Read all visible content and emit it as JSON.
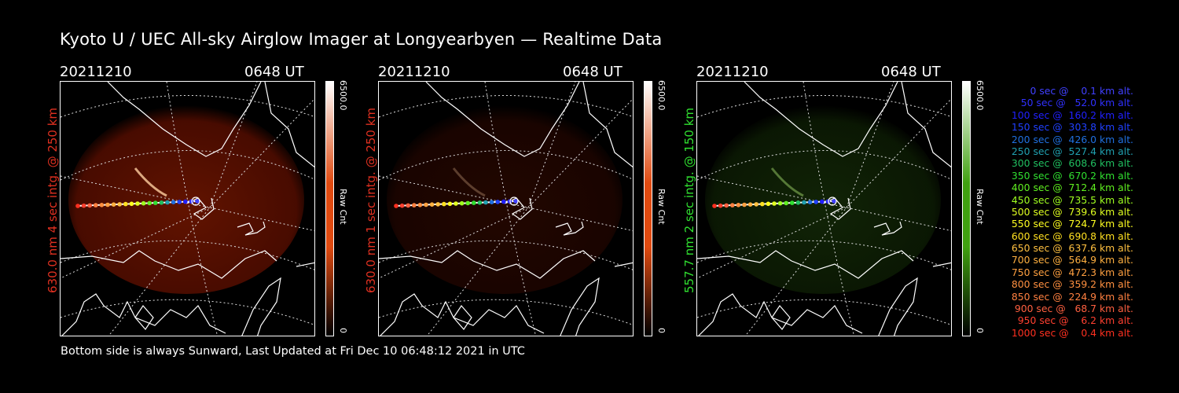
{
  "title": "Kyoto U / UEC All-sky Airglow Imager at Longyearbyen — Realtime Data",
  "footer": "Bottom side is always Sunward, Last Updated at Fri Dec 10 06:48:12 2021 in UTC",
  "panels": [
    {
      "date": "20211210",
      "time": "0648 UT",
      "side_label": "630.0 nm 4 sec intg. @ 250 km",
      "label_color": "#e03020",
      "colorbar_max": "6500.0",
      "colorbar_min": "0",
      "colorbar_unit": "Raw Cnt",
      "colorbar_color": "#e04a10",
      "glow_color": "red",
      "brightness": 0.8
    },
    {
      "date": "20211210",
      "time": "0648 UT",
      "side_label": "630.0 nm 1 sec intg. @ 250 km",
      "label_color": "#e03020",
      "colorbar_max": "6500.0",
      "colorbar_min": "0",
      "colorbar_unit": "Raw Cnt",
      "colorbar_color": "#e04a10",
      "glow_color": "red",
      "brightness": 0.28
    },
    {
      "date": "20211210",
      "time": "0648 UT",
      "side_label": "557.7 nm 2 sec intg. @ 150 km",
      "label_color": "#30e030",
      "colorbar_max": "6500.0",
      "colorbar_min": "0",
      "colorbar_unit": "Raw Cnt",
      "colorbar_color": "#40a010",
      "glow_color": "green",
      "brightness": 0.4
    }
  ],
  "legend": [
    {
      "text": "0 sec @    0.1 km alt.",
      "color": "#4040ff"
    },
    {
      "text": "50 sec @   52.0 km alt.",
      "color": "#3030ff"
    },
    {
      "text": "100 sec @  160.2 km alt.",
      "color": "#2020ff"
    },
    {
      "text": "150 sec @  303.8 km alt.",
      "color": "#2040ff"
    },
    {
      "text": "200 sec @  426.0 km alt.",
      "color": "#2070e0"
    },
    {
      "text": "250 sec @  527.4 km alt.",
      "color": "#20a0b0"
    },
    {
      "text": "300 sec @  608.6 km alt.",
      "color": "#20c060"
    },
    {
      "text": "350 sec @  670.2 km alt.",
      "color": "#30e030"
    },
    {
      "text": "400 sec @  712.4 km alt.",
      "color": "#60f020"
    },
    {
      "text": "450 sec @  735.5 km alt.",
      "color": "#a0ff20"
    },
    {
      "text": "500 sec @  739.6 km alt.",
      "color": "#e0ff20"
    },
    {
      "text": "550 sec @  724.7 km alt.",
      "color": "#ffff20"
    },
    {
      "text": "600 sec @  690.8 km alt.",
      "color": "#ffe020"
    },
    {
      "text": "650 sec @  637.6 km alt.",
      "color": "#ffc040"
    },
    {
      "text": "700 sec @  564.9 km alt.",
      "color": "#ffb040"
    },
    {
      "text": "750 sec @  472.3 km alt.",
      "color": "#ffa040"
    },
    {
      "text": "800 sec @  359.2 km alt.",
      "color": "#ff9040"
    },
    {
      "text": "850 sec @  224.9 km alt.",
      "color": "#ff8040"
    },
    {
      "text": "900 sec @   68.7 km alt.",
      "color": "#ff6040"
    },
    {
      "text": "950 sec @    6.2 km alt.",
      "color": "#ff4030"
    },
    {
      "text": "1000 sec @    0.4 km alt.",
      "color": "#ff3020"
    }
  ]
}
